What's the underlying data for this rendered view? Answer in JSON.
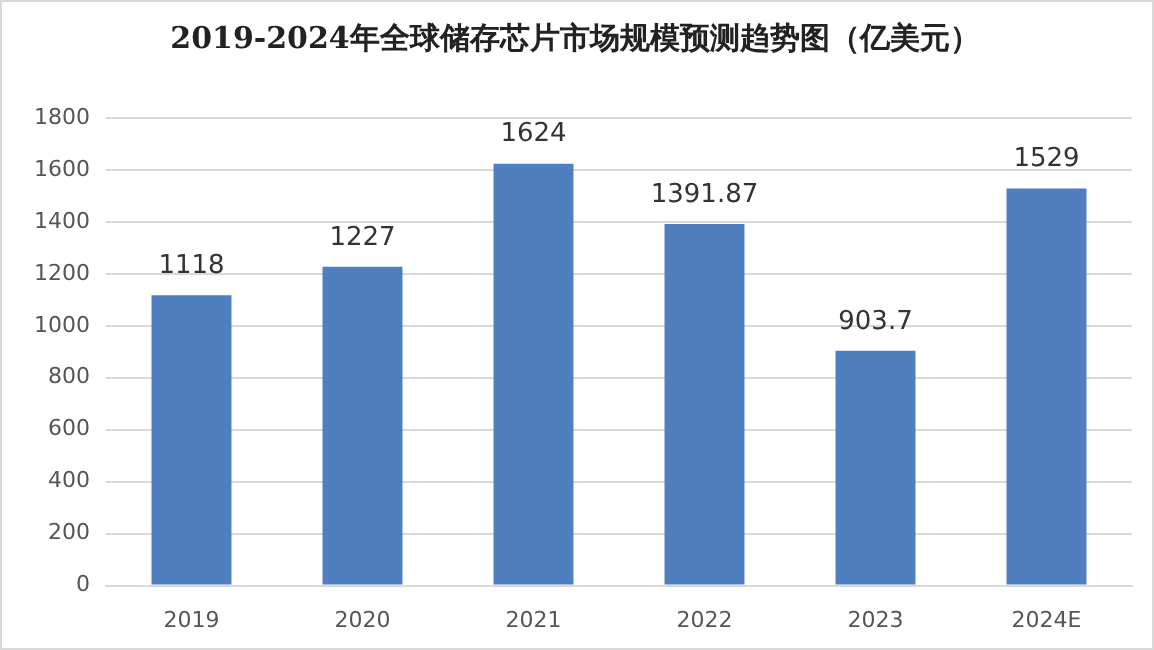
{
  "chart_data": {
    "type": "bar",
    "title": "2019-2024年全球储存芯片市场规模预测趋势图（亿美元）",
    "categories": [
      "2019",
      "2020",
      "2021",
      "2022",
      "2023",
      "2024E"
    ],
    "values": [
      1118,
      1227,
      1624,
      1391.87,
      903.7,
      1529
    ],
    "color": "#4f7fbf",
    "ylim": [
      0,
      1800
    ],
    "yticks": [
      0,
      200,
      400,
      600,
      800,
      1000,
      1200,
      1400,
      1600,
      1800
    ],
    "grid": "y",
    "data_labels": true,
    "legend": false
  }
}
